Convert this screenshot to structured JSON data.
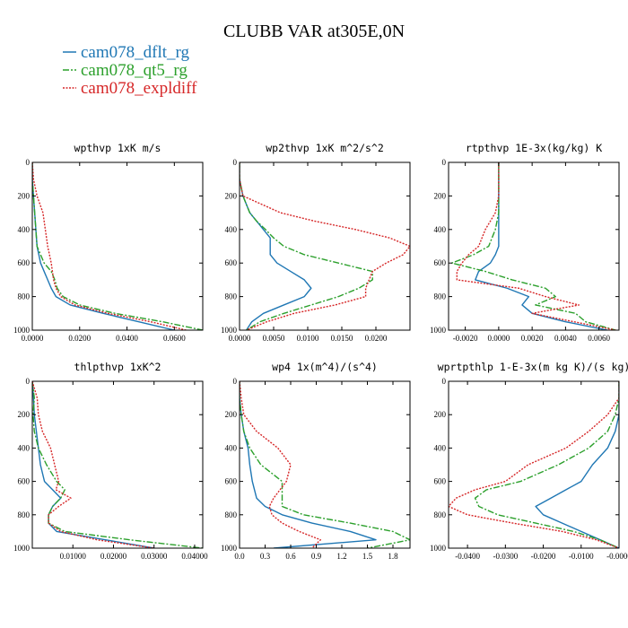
{
  "title": "CLUBB VAR at305E,0N",
  "legend": [
    {
      "label": "cam078_dflt_rg",
      "color": "#1f77b4",
      "dash": "solid"
    },
    {
      "label": "cam078_qt5_rg",
      "color": "#2ca02c",
      "dash": "dashdot"
    },
    {
      "label": "cam078_expldiff",
      "color": "#d62728",
      "dash": "dotted"
    }
  ],
  "chart_data": [
    {
      "type": "line",
      "title": "wpthvp   1xK m/s",
      "xlim": [
        0,
        0.072
      ],
      "ylim": [
        1000,
        0
      ],
      "xticks": [
        0,
        0.02,
        0.04,
        0.06
      ],
      "xticklabels": [
        "0.0000",
        "0.0200",
        "0.0400",
        "0.0600"
      ],
      "yticks": [
        0,
        200,
        400,
        600,
        800,
        1000
      ],
      "yticklabels": [
        "0",
        "200",
        "400",
        "600",
        "800",
        "1000"
      ],
      "y": [
        0,
        100,
        200,
        300,
        400,
        500,
        600,
        650,
        700,
        750,
        800,
        850,
        900,
        950,
        1000
      ],
      "series": [
        {
          "name": "cam078_dflt_rg",
          "values": [
            0,
            0,
            0.0005,
            0.001,
            0.0015,
            0.002,
            0.0035,
            0.005,
            0.0065,
            0.008,
            0.01,
            0.016,
            0.03,
            0.045,
            0.06
          ]
        },
        {
          "name": "cam078_qt5_rg",
          "values": [
            0,
            0,
            0.0005,
            0.001,
            0.0015,
            0.002,
            0.005,
            0.008,
            0.0095,
            0.0105,
            0.013,
            0.02,
            0.035,
            0.055,
            0.072
          ]
        },
        {
          "name": "cam078_expldiff",
          "values": [
            0,
            0.0005,
            0.002,
            0.0045,
            0.0055,
            0.0065,
            0.008,
            0.0085,
            0.009,
            0.01,
            0.012,
            0.018,
            0.032,
            0.05,
            0.065
          ]
        }
      ]
    },
    {
      "type": "line",
      "title": "wp2thvp   1xK m^2/s^2",
      "xlim": [
        0,
        0.025
      ],
      "ylim": [
        1000,
        0
      ],
      "xticks": [
        0,
        0.005,
        0.01,
        0.015,
        0.02
      ],
      "xticklabels": [
        "0.0000",
        "0.0050",
        "0.0100",
        "0.0150",
        "0.0200"
      ],
      "yticks": [
        0,
        200,
        400,
        600,
        800,
        1000
      ],
      "yticklabels": [
        "0",
        "200",
        "400",
        "600",
        "800",
        "1000"
      ],
      "y": [
        0,
        100,
        200,
        300,
        350,
        400,
        450,
        500,
        550,
        600,
        650,
        700,
        750,
        800,
        850,
        900,
        950,
        1000
      ],
      "series": [
        {
          "name": "cam078_dflt_rg",
          "values": [
            0,
            0,
            0.0005,
            0.0015,
            0.0025,
            0.0035,
            0.0045,
            0.0045,
            0.0045,
            0.0055,
            0.0075,
            0.0095,
            0.0105,
            0.0095,
            0.0065,
            0.0035,
            0.0018,
            0.001
          ]
        },
        {
          "name": "cam078_qt5_rg",
          "values": [
            0,
            0,
            0.0005,
            0.0015,
            0.0025,
            0.0038,
            0.005,
            0.0065,
            0.0095,
            0.0145,
            0.0195,
            0.0195,
            0.0175,
            0.0145,
            0.0105,
            0.0065,
            0.003,
            0.001
          ]
        },
        {
          "name": "cam078_expldiff",
          "values": [
            0,
            0,
            0.0005,
            0.006,
            0.011,
            0.017,
            0.022,
            0.025,
            0.024,
            0.0215,
            0.0195,
            0.019,
            0.0185,
            0.0185,
            0.014,
            0.008,
            0.004,
            0.001
          ]
        }
      ]
    },
    {
      "type": "line",
      "title": "rtpthvp   1E-3x(kg/kg) K",
      "xlim": [
        -0.003,
        0.0072
      ],
      "ylim": [
        1000,
        0
      ],
      "xticks": [
        -0.002,
        0,
        0.002,
        0.004,
        0.006
      ],
      "xticklabels": [
        "-0.0020",
        "0.0000",
        "0.0020",
        "0.0040",
        "0.0060"
      ],
      "yticks": [
        0,
        200,
        400,
        600,
        800,
        1000
      ],
      "yticklabels": [
        "0",
        "200",
        "400",
        "600",
        "800",
        "1000"
      ],
      "y": [
        0,
        100,
        200,
        300,
        400,
        500,
        550,
        600,
        650,
        700,
        750,
        800,
        850,
        900,
        950,
        1000
      ],
      "series": [
        {
          "name": "cam078_dflt_rg",
          "values": [
            0,
            0,
            0,
            0,
            0,
            0,
            -0.0002,
            -0.0005,
            -0.0012,
            -0.0014,
            0.0005,
            0.0018,
            0.0014,
            0.002,
            0.004,
            0.0065
          ]
        },
        {
          "name": "cam078_qt5_rg",
          "values": [
            0,
            0,
            0,
            0,
            -0.0002,
            -0.0006,
            -0.0015,
            -0.0028,
            -0.0008,
            0.0008,
            0.0028,
            0.0034,
            0.0022,
            0.0046,
            0.0052,
            0.007
          ]
        },
        {
          "name": "cam078_expldiff",
          "values": [
            0,
            0,
            0,
            -0.0002,
            -0.0008,
            -0.0012,
            -0.0018,
            -0.0022,
            -0.0025,
            -0.0025,
            0.0012,
            0.0028,
            0.0048,
            0.002,
            0.0045,
            0.007
          ]
        }
      ]
    },
    {
      "type": "line",
      "title": "thlpthvp   1xK^2",
      "xlim": [
        0,
        0.042
      ],
      "ylim": [
        1000,
        0
      ],
      "xticks": [
        0.01,
        0.02,
        0.03,
        0.04
      ],
      "xticklabels": [
        "0.01000",
        "0.02000",
        "0.03000",
        "0.04000"
      ],
      "yticks": [
        0,
        200,
        400,
        600,
        800,
        1000
      ],
      "yticklabels": [
        "0",
        "200",
        "400",
        "600",
        "800",
        "1000"
      ],
      "y": [
        0,
        100,
        200,
        300,
        400,
        500,
        600,
        650,
        700,
        750,
        800,
        850,
        900,
        950,
        1000
      ],
      "series": [
        {
          "name": "cam078_dflt_rg",
          "values": [
            0,
            0.0003,
            0.0005,
            0.001,
            0.0015,
            0.002,
            0.003,
            0.005,
            0.007,
            0.005,
            0.004,
            0.004,
            0.006,
            0.018,
            0.03
          ]
        },
        {
          "name": "cam078_qt5_rg",
          "values": [
            0,
            0.0005,
            0.0002,
            0.0005,
            0.0015,
            0.0035,
            0.006,
            0.008,
            0.007,
            0.005,
            0.004,
            0.004,
            0.008,
            0.024,
            0.042
          ]
        },
        {
          "name": "cam078_expldiff",
          "values": [
            0,
            0.0012,
            0.0015,
            0.0025,
            0.0045,
            0.0055,
            0.0065,
            0.0058,
            0.0095,
            0.0065,
            0.004,
            0.004,
            0.007,
            0.016,
            0.03
          ]
        }
      ]
    },
    {
      "type": "line",
      "title": "wp4   1x(m^4)/(s^4)",
      "xlim": [
        0,
        2.0
      ],
      "ylim": [
        1000,
        0
      ],
      "xticks": [
        0,
        0.3,
        0.6,
        0.9,
        1.2,
        1.5,
        1.8
      ],
      "xticklabels": [
        "0.0",
        "0.3",
        "0.6",
        "0.9",
        "1.2",
        "1.5",
        "1.8"
      ],
      "yticks": [
        0,
        200,
        400,
        600,
        800,
        1000
      ],
      "yticklabels": [
        "0",
        "200",
        "400",
        "600",
        "800",
        "1000"
      ],
      "y": [
        0,
        100,
        200,
        300,
        400,
        500,
        600,
        700,
        750,
        800,
        850,
        900,
        950,
        1000
      ],
      "series": [
        {
          "name": "cam078_dflt_rg",
          "values": [
            0,
            0,
            0.02,
            0.05,
            0.1,
            0.12,
            0.15,
            0.2,
            0.3,
            0.5,
            0.85,
            1.3,
            1.6,
            0.4
          ]
        },
        {
          "name": "cam078_qt5_rg",
          "values": [
            0,
            0,
            0.02,
            0.05,
            0.12,
            0.25,
            0.5,
            0.5,
            0.5,
            0.75,
            1.3,
            1.8,
            2.0,
            1.5
          ]
        },
        {
          "name": "cam078_expldiff",
          "values": [
            0,
            0.02,
            0.05,
            0.2,
            0.45,
            0.6,
            0.55,
            0.4,
            0.35,
            0.38,
            0.5,
            0.7,
            0.95,
            0.85
          ]
        }
      ]
    },
    {
      "type": "line",
      "title": "wprtpthlp   1-E-3x(m kg K)/(s kg)",
      "xlim": [
        -0.045,
        0
      ],
      "ylim": [
        1000,
        0
      ],
      "xticks": [
        -0.04,
        -0.03,
        -0.02,
        -0.01,
        0
      ],
      "xticklabels": [
        "-0.0400",
        "-0.0300",
        "-0.0200",
        "-0.0100",
        "-0.0000"
      ],
      "yticks": [
        0,
        200,
        400,
        600,
        800,
        1000
      ],
      "yticklabels": [
        "0",
        "200",
        "400",
        "600",
        "800",
        "1000"
      ],
      "y": [
        0,
        100,
        200,
        300,
        400,
        500,
        600,
        650,
        700,
        750,
        800,
        850,
        900,
        950,
        1000
      ],
      "series": [
        {
          "name": "cam078_dflt_rg",
          "values": [
            0,
            0,
            0,
            -0.001,
            -0.003,
            -0.007,
            -0.01,
            -0.014,
            -0.018,
            -0.022,
            -0.02,
            -0.015,
            -0.01,
            -0.005,
            0
          ]
        },
        {
          "name": "cam078_qt5_rg",
          "values": [
            0,
            0,
            -0.001,
            -0.003,
            -0.008,
            -0.016,
            -0.026,
            -0.035,
            -0.038,
            -0.037,
            -0.032,
            -0.022,
            -0.012,
            -0.005,
            0
          ]
        },
        {
          "name": "cam078_expldiff",
          "values": [
            0,
            0,
            -0.003,
            -0.008,
            -0.014,
            -0.024,
            -0.03,
            -0.038,
            -0.043,
            -0.045,
            -0.04,
            -0.028,
            -0.015,
            -0.006,
            0
          ]
        }
      ]
    }
  ]
}
